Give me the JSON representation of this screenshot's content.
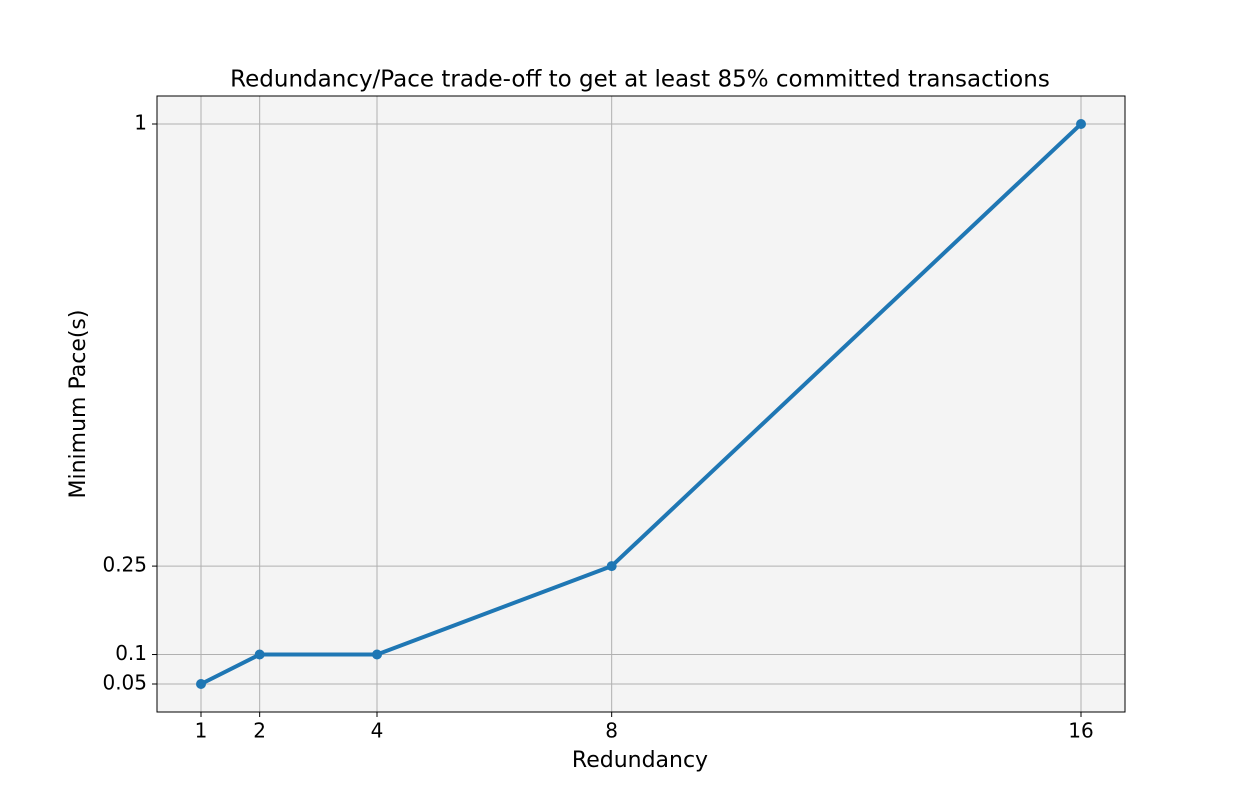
{
  "chart_data": {
    "type": "line",
    "title": "Redundancy/Pace trade-off to get at least 85% committed transactions",
    "x_label": "Redundancy",
    "y_label": "Minimum Pace(s)",
    "x": [
      1,
      2,
      4,
      8,
      16
    ],
    "series": [
      {
        "color": "#1f77b4",
        "values": [
          0.05,
          0.1,
          0.1,
          0.25,
          1
        ]
      }
    ],
    "xlim": [
      0.25,
      16.75
    ],
    "xticks": [
      1,
      2,
      4,
      8,
      16
    ],
    "ylim": [
      0.0025,
      1.0475
    ],
    "yticks": [
      0.05,
      0.1,
      0.25,
      1
    ],
    "grid": true
  }
}
